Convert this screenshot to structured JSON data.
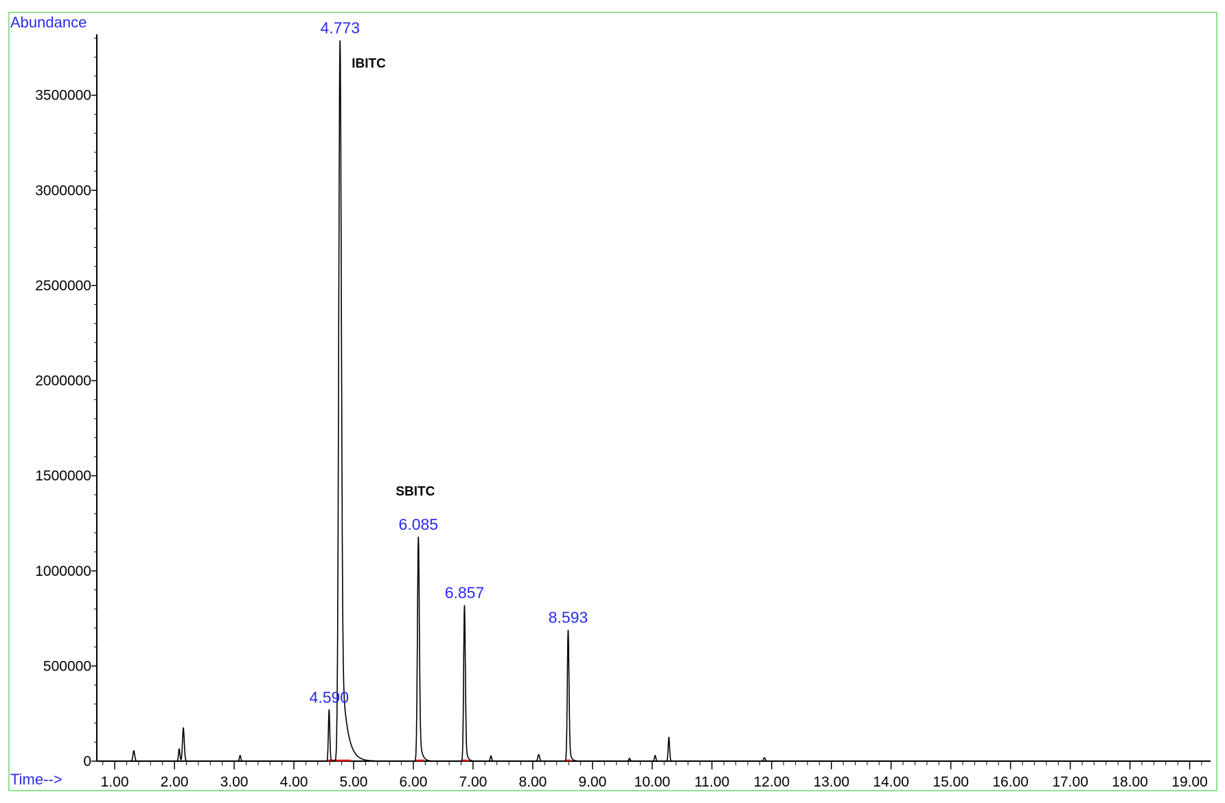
{
  "chart_data": {
    "type": "line",
    "y_axis_title": "Abundance",
    "x_axis_title": "Time-->",
    "xlim": [
      0.7,
      19.35
    ],
    "ylim": [
      0,
      3820000
    ],
    "x_ticks": [
      1.0,
      2.0,
      3.0,
      4.0,
      5.0,
      6.0,
      7.0,
      8.0,
      9.0,
      10.0,
      11.0,
      12.0,
      13.0,
      14.0,
      15.0,
      16.0,
      17.0,
      18.0,
      19.0
    ],
    "x_tick_labels": [
      "1.00",
      "2.00",
      "3.00",
      "4.00",
      "5.00",
      "6.00",
      "7.00",
      "8.00",
      "9.00",
      "10.00",
      "11.00",
      "12.00",
      "13.00",
      "14.00",
      "15.00",
      "16.00",
      "17.00",
      "18.00",
      "19.00"
    ],
    "y_ticks": [
      0,
      500000,
      1000000,
      1500000,
      2000000,
      2500000,
      3000000,
      3500000
    ],
    "y_tick_labels": [
      "0",
      "500000",
      "1000000",
      "1500000",
      "2000000",
      "2500000",
      "3000000",
      "3500000"
    ],
    "peaks": [
      {
        "rt": 1.32,
        "height": 55000,
        "width": 0.015
      },
      {
        "rt": 2.08,
        "height": 65000,
        "width": 0.012
      },
      {
        "rt": 2.15,
        "height": 175000,
        "width": 0.015
      },
      {
        "rt": 3.1,
        "height": 30000,
        "width": 0.012
      },
      {
        "rt": 4.59,
        "height": 270000,
        "width": 0.012,
        "label": "4.590"
      },
      {
        "rt": 4.773,
        "height": 3790000,
        "width": 0.022,
        "tail": 0.09,
        "label": "4.773",
        "compound": "IBITC"
      },
      {
        "rt": 6.085,
        "height": 1180000,
        "width": 0.016,
        "tail": 0.04,
        "label": "6.085",
        "compound": "SBITC"
      },
      {
        "rt": 6.857,
        "height": 820000,
        "width": 0.014,
        "tail": 0.03,
        "label": "6.857"
      },
      {
        "rt": 7.3,
        "height": 28000,
        "width": 0.012
      },
      {
        "rt": 8.1,
        "height": 35000,
        "width": 0.015
      },
      {
        "rt": 8.593,
        "height": 690000,
        "width": 0.014,
        "tail": 0.03,
        "label": "8.593"
      },
      {
        "rt": 9.62,
        "height": 15000,
        "width": 0.012
      },
      {
        "rt": 10.05,
        "height": 30000,
        "width": 0.012
      },
      {
        "rt": 10.28,
        "height": 125000,
        "width": 0.012
      },
      {
        "rt": 11.88,
        "height": 18000,
        "width": 0.015
      }
    ],
    "integration_marks": [
      [
        4.55,
        4.95
      ],
      [
        6.05,
        6.18
      ],
      [
        6.82,
        6.92
      ],
      [
        8.56,
        8.64
      ]
    ],
    "colors": {
      "frame": "#8fe08f",
      "trace": "#000000",
      "axis": "#000000",
      "axis_title": "#2a2af0",
      "peak_label": "#2a2af0",
      "integration": "#e01818",
      "compound_label": "#000000"
    },
    "grid": false
  }
}
